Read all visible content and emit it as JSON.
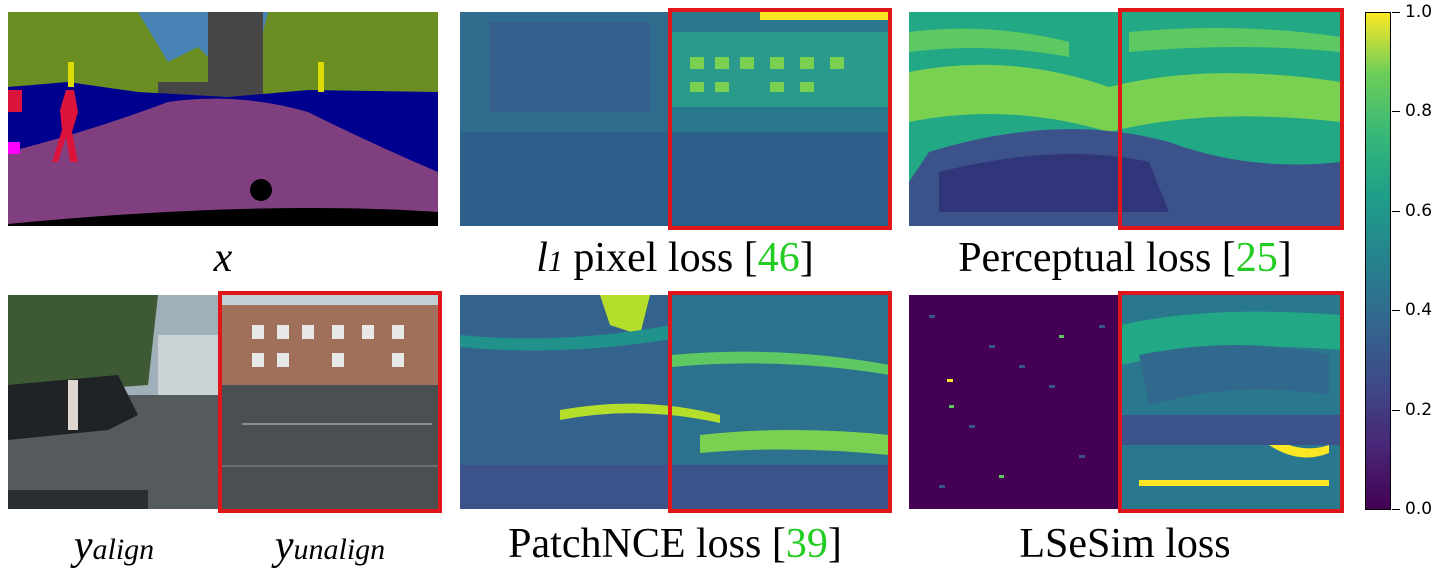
{
  "figure": {
    "panels": [
      {
        "id": "segmentation",
        "caption_math": "x"
      },
      {
        "id": "l1",
        "caption_math": "l",
        "caption_sub": "1",
        "caption_text": " pixel loss [",
        "caption_ref": "46",
        "caption_close": "]"
      },
      {
        "id": "perceptual",
        "caption_text": "Perceptual loss [",
        "caption_ref": "25",
        "caption_close": "]"
      },
      {
        "id": "y-align",
        "caption_math": "y",
        "caption_sub": "align"
      },
      {
        "id": "y-unalign",
        "caption_math": "y",
        "caption_sub": "unalign"
      },
      {
        "id": "patchnce",
        "caption_text": "PatchNCE loss [",
        "caption_ref": "39",
        "caption_close": "]"
      },
      {
        "id": "lsesim",
        "caption_text": "LSeSim loss"
      }
    ],
    "colorbar": {
      "ticks": [
        "1.0",
        "0.8",
        "0.6",
        "0.4",
        "0.2",
        "0.0"
      ],
      "colormap": "viridis"
    },
    "colors": {
      "highlight_box": "#e0161b",
      "reference": "#22cc22"
    }
  }
}
